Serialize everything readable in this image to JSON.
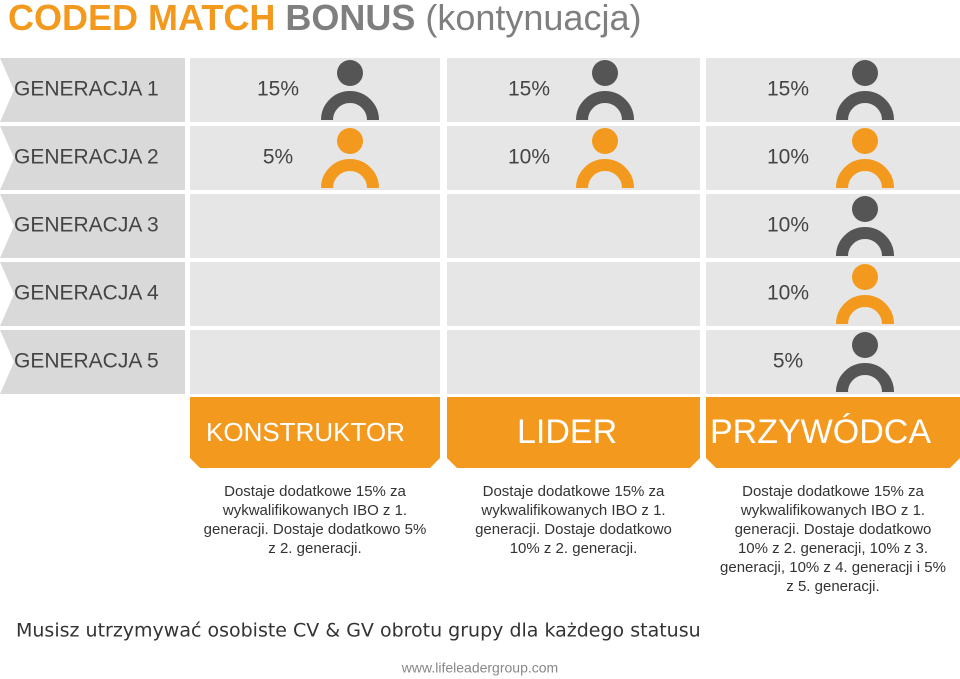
{
  "header": {
    "title_orange": "CODED MATCH",
    "title_bold": "BONUS",
    "title_rest": "(kontynuacja)"
  },
  "rows": [
    {
      "label": "GENERACJA 1",
      "cells": [
        "15%",
        "15%",
        "15%"
      ]
    },
    {
      "label": "GENERACJA 2",
      "cells": [
        "5%",
        "10%",
        "10%"
      ]
    },
    {
      "label": "GENERACJA 3",
      "cells": [
        null,
        null,
        "10%"
      ]
    },
    {
      "label": "GENERACJA 4",
      "cells": [
        null,
        null,
        "10%"
      ]
    },
    {
      "label": "GENERACJA 5",
      "cells": [
        null,
        null,
        "5%"
      ]
    }
  ],
  "columns": [
    {
      "title": "KONSTRUKTOR",
      "description_lines": [
        "Dostaje dodatkowe 15% za",
        "wykwalifikowanych IBO z 1.",
        "generacji. Dostaje dodatkowo 5%",
        "z 2. generacji."
      ]
    },
    {
      "title": "LIDER",
      "description_lines": [
        "Dostaje dodatkowe 15% za",
        "wykwalifikowanych IBO z 1.",
        "generacji. Dostaje dodatkowo",
        "10% z 2. generacji."
      ]
    },
    {
      "title": "PRZYWÓDCA",
      "description_lines": [
        "Dostaje dodatkowe 15% za",
        "wykwalifikowanych IBO z 1.",
        "generacji. Dostaje dodatkowo",
        "10% z 2. generacji, 10% z 3.",
        "generacji, 10% z 4. generacji i 5%",
        "z 5. generacji."
      ]
    }
  ],
  "footer": {
    "note": "Musisz utrzymywać osobiste CV & GV obrotu grupy dla każdego statusu",
    "url": "www.lifeleadergroup.com"
  }
}
